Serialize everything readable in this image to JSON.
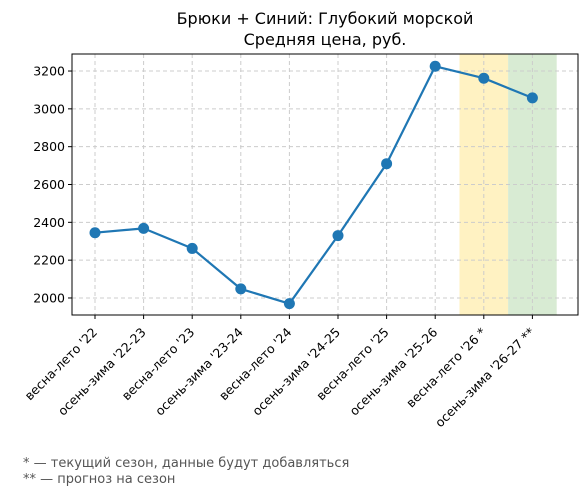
{
  "chart_data": {
    "type": "line",
    "title_lines": [
      "Брюки + Синий: Глубокий морской",
      "Средняя цена, руб."
    ],
    "xlabel": "",
    "ylabel": "",
    "categories": [
      "весна-лето '22",
      "осень-зима '22-23",
      "весна-лето '23",
      "осень-зима '23-24",
      "весна-лето '24",
      "осень-зима '24-25",
      "весна-лето '25",
      "осень-зима '25-26",
      "весна-лето '26 *",
      "осень-зима '26-27 **"
    ],
    "series": [
      {
        "values": [
          2345,
          2368,
          2262,
          2048,
          1970,
          2330,
          2710,
          3225,
          3162,
          3058
        ]
      }
    ],
    "ylim": [
      1910,
      3290
    ],
    "yticks": [
      2000,
      2200,
      2400,
      2600,
      2800,
      3000,
      3200
    ],
    "grid": true,
    "line_color": "#1f77b4",
    "highlights": [
      {
        "category_index": 8,
        "color": "#fff2c2",
        "meaning": "current season"
      },
      {
        "category_index": 9,
        "color": "#d8ebd3",
        "meaning": "forecast"
      }
    ]
  },
  "footnotes": [
    "* — текущий сезон, данные будут добавляться",
    "** — прогноз на сезон"
  ]
}
